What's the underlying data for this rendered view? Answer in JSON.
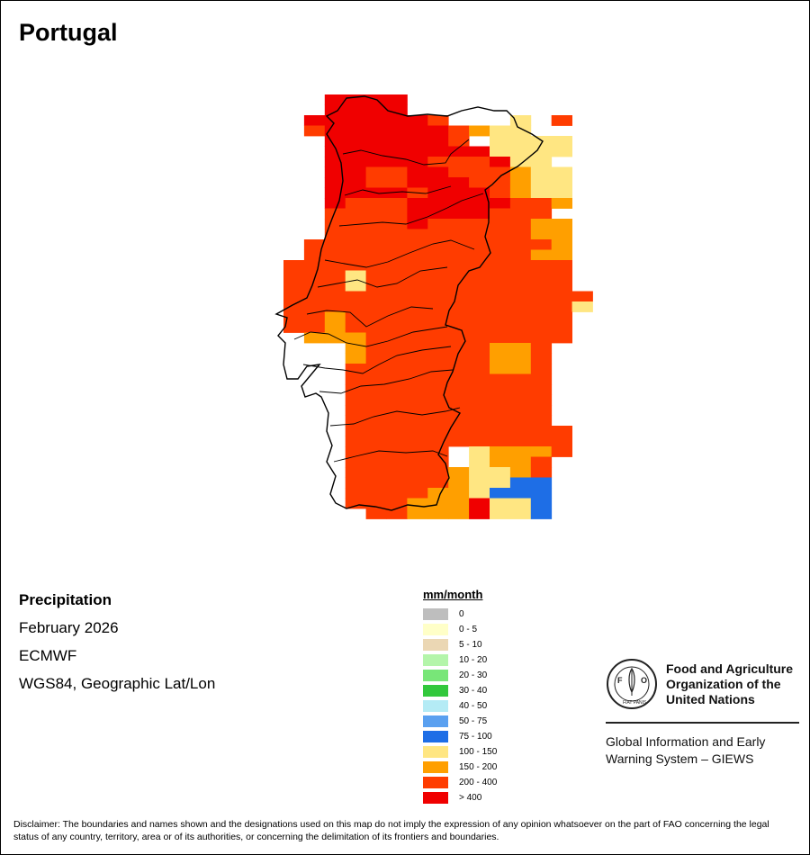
{
  "title": "Portugal",
  "map_info": {
    "variable": "Precipitation",
    "period": "February 2026",
    "model": "ECMWF",
    "projection": "WGS84, Geographic Lat/Lon"
  },
  "legend": {
    "unit": "mm/month",
    "classes": [
      {
        "label": "0",
        "color": "#bebebe"
      },
      {
        "label": "0 - 5",
        "color": "#ffffc8"
      },
      {
        "label": "5 - 10",
        "color": "#ebd7b4"
      },
      {
        "label": "10 - 20",
        "color": "#b4f5aa"
      },
      {
        "label": "20 - 30",
        "color": "#78e678"
      },
      {
        "label": "30 - 40",
        "color": "#32c83c"
      },
      {
        "label": "40 - 50",
        "color": "#b4ebf5"
      },
      {
        "label": "50 - 75",
        "color": "#5aa0f0"
      },
      {
        "label": "75 - 100",
        "color": "#1e6ee6"
      },
      {
        "label": "100 - 150",
        "color": "#ffe682"
      },
      {
        "label": "150 - 200",
        "color": "#ff9f00"
      },
      {
        "label": "200 - 400",
        "color": "#ff3c00"
      },
      {
        "label": "> 400",
        "color": "#f00000"
      }
    ]
  },
  "grid_classes": [
    "..XXXX..........",
    "..XXXX..........",
    ".XXXXXXR...YOR..",
    ".RXXXXXXRAYYO...",
    "..XXXXXXROYYYY..",
    "..XXXXXXXXYYYY..",
    "..XXXXXRRRXYY...",
    "..XXRRXXRRRAYY..",
    "..XXRRXXXRRAYY..",
    "..XXXXRXXXRAYY..",
    "..XRRRXXXXXRRA..",
    "..RRRRXXXXRRRO..",
    "..RRRRXRRRRRAA..",
    "..RRRRRRRRRRAA..",
    ".RRRRRRRRRRRRA..",
    ".RRRRRRRRRRRAA..",
    "RRRRRRRRRRRRRR..",
    "RRRYRRRRRRRRRR..",
    "RRRYRRRRRRRRRR..",
    "RRRRRRRRRRRRRRR.",
    "RRRRRRRRRRRRRRY.",
    "RRARRRRRRRRRRR..",
    "RRARRRRRRRRRRR..",
    ".AAARRRRRRRRRR..",
    "...ARRRRRRAAR...",
    "...ARRRRRRAAR...",
    "...RRRRRRRAAR...",
    "...RRRRRRRRRR...",
    "...RRRRRRRRRR...",
    "...RRRRRRRRRR...",
    "...RRRRRRRRRR...",
    "...RRRRRRRRRR...",
    "...RRRRRRRRRRR..",
    "...RRRRRRRRRRR..",
    "...RRRRROYAAAR..",
    "...RRRRROYAAR...",
    "...RRRRRAYYAR...",
    "...RRRRRAYYBB...",
    "...RRRRAAYBBB...",
    "...RRRAAAXYYB...",
    "....RRAAAXYYB..."
  ],
  "disclaimer": "Disclaimer: The boundaries and names shown and the designations used on this map do not imply the expression of any opinion whatsoever on the part of FAO concerning the legal status of any country, territory, area or of its authorities, or concerning the delimitation of its frontiers and boundaries.",
  "org": {
    "logo_text": "FAO",
    "logo_ring_text": "FIAT PANIS",
    "name_line1": "Food and Agriculture",
    "name_line2": "Organization of the",
    "name_line3": "United Nations",
    "system_line1": "Global Information and Early",
    "system_line2": "Warning System – GIEWS"
  }
}
